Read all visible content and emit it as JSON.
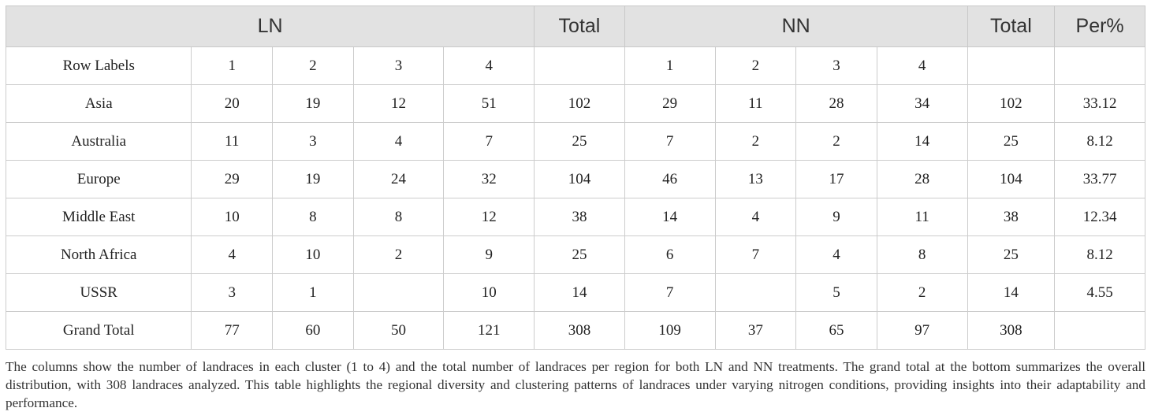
{
  "header": {
    "ln_label": "LN",
    "total_label_1": "Total",
    "nn_label": "NN",
    "total_label_2": "Total",
    "per_label": "Per%"
  },
  "rows": [
    {
      "label": "Row Labels",
      "cells": [
        "1",
        "2",
        "3",
        "4",
        "",
        "1",
        "2",
        "3",
        "4",
        "",
        ""
      ]
    },
    {
      "label": "Asia",
      "cells": [
        "20",
        "19",
        "12",
        "51",
        "102",
        "29",
        "11",
        "28",
        "34",
        "102",
        "33.12"
      ]
    },
    {
      "label": "Australia",
      "cells": [
        "11",
        "3",
        "4",
        "7",
        "25",
        "7",
        "2",
        "2",
        "14",
        "25",
        "8.12"
      ]
    },
    {
      "label": "Europe",
      "cells": [
        "29",
        "19",
        "24",
        "32",
        "104",
        "46",
        "13",
        "17",
        "28",
        "104",
        "33.77"
      ]
    },
    {
      "label": "Middle East",
      "cells": [
        "10",
        "8",
        "8",
        "12",
        "38",
        "14",
        "4",
        "9",
        "11",
        "38",
        "12.34"
      ]
    },
    {
      "label": "North Africa",
      "cells": [
        "4",
        "10",
        "2",
        "9",
        "25",
        "6",
        "7",
        "4",
        "8",
        "25",
        "8.12"
      ]
    },
    {
      "label": "USSR",
      "cells": [
        "3",
        "1",
        "",
        "10",
        "14",
        "7",
        "",
        "5",
        "2",
        "14",
        "4.55"
      ]
    },
    {
      "label": "Grand Total",
      "cells": [
        "77",
        "60",
        "50",
        "121",
        "308",
        "109",
        "37",
        "65",
        "97",
        "308",
        ""
      ]
    }
  ],
  "caption": "The columns show the number of landraces in each cluster (1 to 4) and the total number of landraces per region for both LN and NN treatments. The grand total at the bottom summarizes the overall distribution, with 308 landraces analyzed. This table highlights the regional diversity and clustering patterns of landraces under varying nitrogen conditions, providing insights into their adaptability and performance."
}
